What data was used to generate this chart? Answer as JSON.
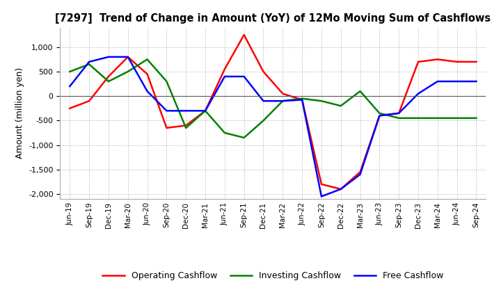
{
  "title": "[7297]  Trend of Change in Amount (YoY) of 12Mo Moving Sum of Cashflows",
  "ylabel": "Amount (million yen)",
  "ylim": [
    -2100,
    1400
  ],
  "yticks": [
    1000,
    500,
    0,
    -500,
    -1000,
    -1500,
    -2000
  ],
  "x_labels": [
    "Jun-19",
    "Sep-19",
    "Dec-19",
    "Mar-20",
    "Jun-20",
    "Sep-20",
    "Dec-20",
    "Mar-21",
    "Jun-21",
    "Sep-21",
    "Dec-21",
    "Mar-22",
    "Jun-22",
    "Sep-22",
    "Dec-22",
    "Mar-23",
    "Jun-23",
    "Sep-23",
    "Dec-23",
    "Mar-24",
    "Jun-24",
    "Sep-24"
  ],
  "operating": [
    -250,
    -100,
    400,
    800,
    450,
    -650,
    -600,
    -300,
    550,
    1250,
    500,
    50,
    -75,
    -1800,
    -1900,
    -1550,
    -400,
    -350,
    700,
    750,
    700,
    700
  ],
  "investing": [
    500,
    650,
    300,
    500,
    750,
    300,
    -650,
    -300,
    -750,
    -850,
    -500,
    -100,
    -50,
    -100,
    -200,
    100,
    -350,
    -450,
    -450,
    -450,
    -450,
    -450
  ],
  "free": [
    200,
    700,
    800,
    800,
    100,
    -300,
    -300,
    -300,
    400,
    400,
    -100,
    -100,
    -75,
    -2050,
    -1900,
    -1600,
    -400,
    -350,
    50,
    300,
    300,
    300
  ],
  "operating_color": "#ff0000",
  "investing_color": "#008000",
  "free_color": "#0000ff",
  "background_color": "#ffffff",
  "grid_color": "#aaaaaa"
}
